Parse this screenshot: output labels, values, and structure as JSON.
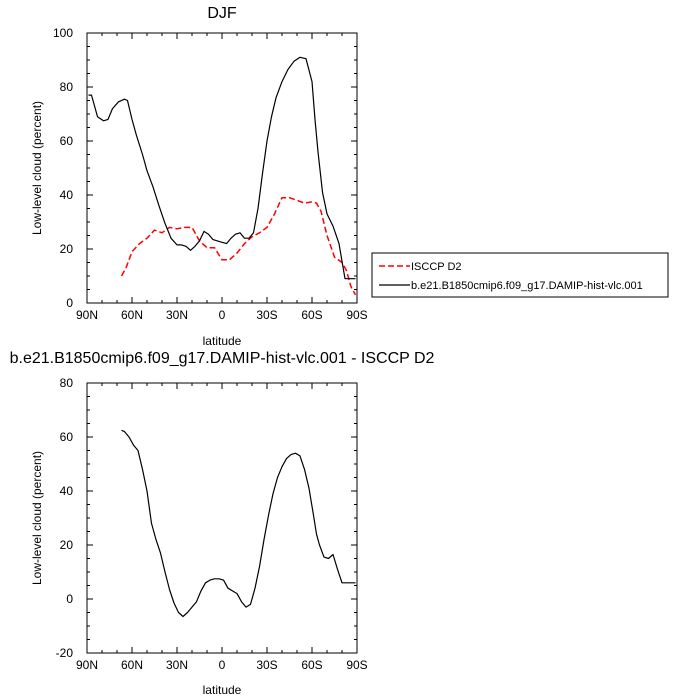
{
  "chart_data": [
    {
      "type": "line",
      "title": "DJF",
      "xlabel": "latitude",
      "ylabel": "Low-level cloud (percent)",
      "xlim": [
        90,
        -90
      ],
      "ylim": [
        0,
        100
      ],
      "xticks": [
        90,
        60,
        30,
        0,
        -30,
        -60,
        -90
      ],
      "xtick_labels": [
        "90N",
        "60N",
        "30N",
        "0",
        "30S",
        "60S",
        "90S"
      ],
      "yticks": [
        0,
        20,
        40,
        60,
        80,
        100
      ],
      "ytick_labels": [
        "0",
        "20",
        "40",
        "60",
        "80",
        "100"
      ],
      "legend_position": "right",
      "series": [
        {
          "name": "ISCCP D2",
          "color": "#ff0000",
          "dash": "dashed",
          "x": [
            67,
            64,
            60,
            55,
            50,
            45,
            40,
            35,
            30,
            25,
            20,
            15,
            10,
            5,
            0,
            -5,
            -10,
            -15,
            -20,
            -25,
            -30,
            -35,
            -40,
            -45,
            -50,
            -55,
            -60,
            -63,
            -66,
            -70,
            -75,
            -80,
            -83,
            -86,
            -89
          ],
          "y": [
            10,
            13,
            19,
            22,
            24,
            27,
            26,
            28,
            27.5,
            28,
            28,
            23,
            20.5,
            20.5,
            16,
            16,
            18.5,
            22,
            24.5,
            26,
            28,
            33,
            39,
            39,
            38,
            37,
            37.5,
            37,
            34,
            25,
            17,
            15,
            12,
            6,
            3
          ]
        },
        {
          "name": "b.e21.B1850cmip6.f09_g17.DAMIP-hist-vlc.001",
          "color": "#000000",
          "dash": "solid",
          "x": [
            89,
            87,
            83,
            79,
            76,
            73,
            69,
            65,
            63,
            60,
            57,
            53,
            50,
            46,
            42,
            38,
            34,
            30,
            27,
            24,
            21,
            18,
            15,
            12,
            9,
            6,
            3,
            0,
            -3,
            -6,
            -9,
            -12,
            -15,
            -18,
            -21,
            -24,
            -27,
            -30,
            -33,
            -36,
            -40,
            -44,
            -48,
            -52,
            -56,
            -60,
            -62,
            -64,
            -67,
            -70,
            -74,
            -78,
            -82,
            -86,
            -89
          ],
          "y": [
            77,
            77,
            69,
            67.5,
            68,
            72,
            74.5,
            75.5,
            75,
            68,
            62,
            55,
            49,
            43,
            36,
            29.5,
            24,
            21.5,
            21.5,
            21,
            19.5,
            21,
            23,
            26.5,
            25.5,
            23.5,
            23,
            22.5,
            22,
            24,
            25.5,
            26,
            24,
            24,
            26,
            35,
            48,
            60,
            69,
            76,
            82,
            86.5,
            89.5,
            91,
            90.5,
            82,
            68,
            56,
            41,
            33,
            28.5,
            22,
            9,
            9,
            9
          ]
        }
      ]
    },
    {
      "type": "line",
      "title": "b.e21.B1850cmip6.f09_g17.DAMIP-hist-vlc.001 - ISCCP D2",
      "xlabel": "latitude",
      "ylabel": "Low-level cloud (percent)",
      "xlim": [
        90,
        -90
      ],
      "ylim": [
        -20,
        80
      ],
      "xticks": [
        90,
        60,
        30,
        0,
        -30,
        -60,
        -90
      ],
      "xtick_labels": [
        "90N",
        "60N",
        "30N",
        "0",
        "30S",
        "60S",
        "90S"
      ],
      "yticks": [
        -20,
        0,
        20,
        40,
        60,
        80
      ],
      "ytick_labels": [
        "-20",
        "0",
        "20",
        "40",
        "60",
        "80"
      ],
      "series": [
        {
          "color": "#000000",
          "dash": "solid",
          "x": [
            67,
            65,
            62,
            59,
            56,
            53,
            50,
            47,
            44,
            41,
            38,
            35,
            32,
            29,
            26,
            23,
            20,
            17,
            14,
            11,
            8,
            5,
            2,
            -1,
            -4,
            -7,
            -10,
            -13,
            -16,
            -19,
            -22,
            -25,
            -28,
            -31,
            -34,
            -37,
            -40,
            -43,
            -46,
            -49,
            -52,
            -55,
            -58,
            -61,
            -63,
            -65,
            -68,
            -71,
            -74,
            -77,
            -80,
            -82,
            -84,
            -86,
            -88,
            -89
          ],
          "y": [
            62.5,
            62,
            60,
            57,
            55,
            48,
            40,
            28,
            22,
            17,
            10,
            3.5,
            -1.5,
            -5,
            -6.5,
            -5,
            -3,
            -1,
            3,
            6,
            7,
            7.5,
            7.5,
            7,
            4,
            3,
            2,
            -1,
            -3,
            -2,
            4,
            12,
            22,
            31,
            39,
            45,
            49,
            52,
            53.5,
            54,
            53,
            48,
            41,
            31,
            24,
            20,
            15.5,
            15,
            16.5,
            11,
            6,
            6,
            6,
            6,
            6,
            6
          ]
        }
      ]
    }
  ]
}
